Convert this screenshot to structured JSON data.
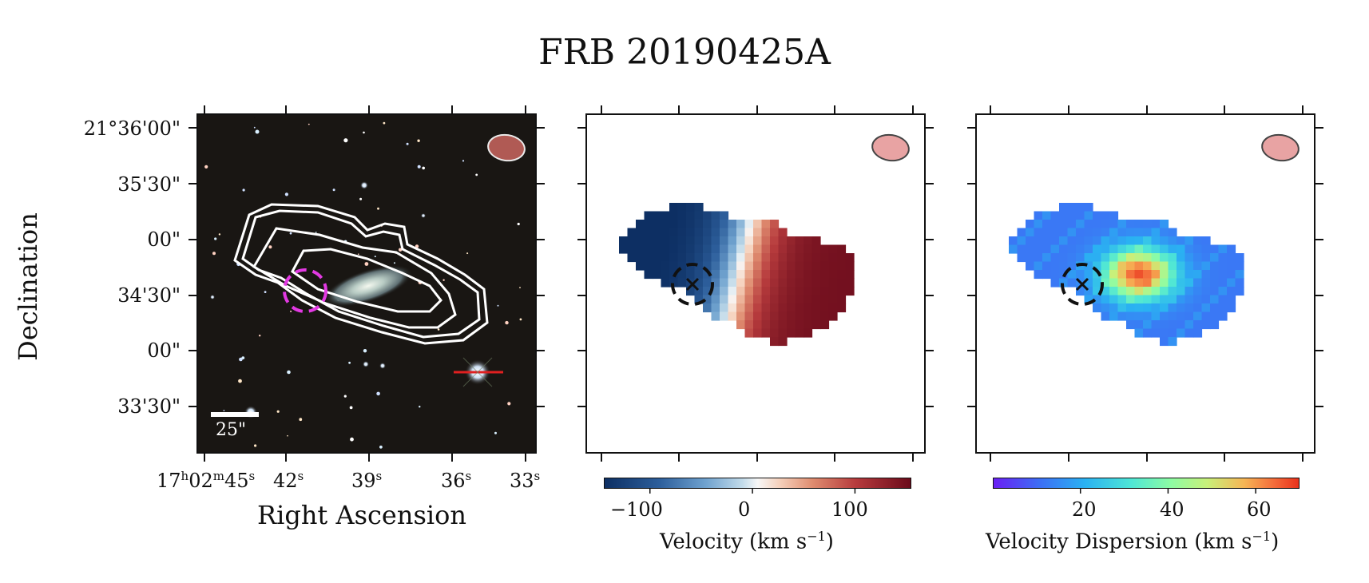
{
  "figure": {
    "title": "FRB 20190425A",
    "ylabel": "Declination",
    "xlabel": "Right Ascension",
    "dec_ticks": [
      "21°36'00\"",
      "35'30\"",
      "00\"",
      "34'30\"",
      "00\"",
      "33'30\""
    ],
    "ra_ticks": [
      {
        "main": "17",
        "h": "h",
        "m_main": "02",
        "m": "m",
        "s_main": "45",
        "s": "s"
      },
      {
        "main": "42",
        "s": "s"
      },
      {
        "main": "39",
        "s": "s"
      },
      {
        "main": "36",
        "s": "s"
      },
      {
        "main": "33",
        "s": "s"
      }
    ],
    "scale_bar_label": "25\"",
    "panels": [
      {
        "name": "optical-image-with-contours"
      },
      {
        "name": "velocity-map",
        "colorbar_label": "Velocity (km s",
        "unit_sup": "−1",
        "close": ")",
        "colorbar_ticks": [
          "−100",
          "0",
          "100"
        ],
        "colormap": "RdBu_r",
        "range": [
          -145,
          155
        ]
      },
      {
        "name": "velocity-dispersion-map",
        "colorbar_label": "Velocity Dispersion (km s",
        "unit_sup": "−1",
        "close": ")",
        "colorbar_ticks": [
          "20",
          "40",
          "60"
        ],
        "colormap": "rainbow",
        "range": [
          0,
          70
        ]
      }
    ],
    "colors": {
      "contour": "#ffffff",
      "frb_circle_image": "#e339e3",
      "frb_circle_maps": "#000000",
      "beam_fill": "#e8a3a3",
      "beam_fill_image": "#b05a54"
    }
  }
}
